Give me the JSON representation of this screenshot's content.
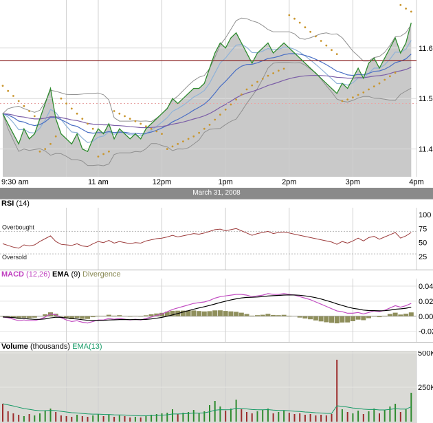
{
  "date_banner": "March 31, 2008",
  "x_axis": {
    "labels": [
      "9:30 am",
      "11 am",
      "12pm",
      "1pm",
      "2pm",
      "3pm",
      "4pm"
    ],
    "label_minutes": [
      0,
      90,
      150,
      210,
      270,
      330,
      390
    ],
    "grid_minutes": [
      60,
      90,
      150,
      210,
      270,
      330,
      390
    ],
    "total_minutes": 390,
    "step_minutes": 5
  },
  "chart_data": [
    {
      "type": "line",
      "name": "price-intraday",
      "date": "March 31, 2008",
      "ylim": [
        11.345,
        11.695
      ],
      "y_ticks": [
        {
          "label": "11.60",
          "value": 11.6
        },
        {
          "label": "11.50",
          "value": 11.5
        },
        {
          "label": "11.40",
          "value": 11.4
        }
      ],
      "series": [
        {
          "name": "price",
          "color": "#2e8b2e",
          "fill": "#c9c9c9",
          "values": [
            11.47,
            11.45,
            11.43,
            11.41,
            11.44,
            11.42,
            11.43,
            11.46,
            11.49,
            11.52,
            11.46,
            11.43,
            11.42,
            11.41,
            11.43,
            11.4,
            11.395,
            11.42,
            11.44,
            11.43,
            11.45,
            11.42,
            11.44,
            11.43,
            11.42,
            11.43,
            11.42,
            11.44,
            11.45,
            11.46,
            11.47,
            11.48,
            11.5,
            11.49,
            11.5,
            11.51,
            11.52,
            11.52,
            11.53,
            11.56,
            11.59,
            11.61,
            11.6,
            11.62,
            11.63,
            11.61,
            11.59,
            11.57,
            11.59,
            11.6,
            11.61,
            11.59,
            11.6,
            11.61,
            11.6,
            11.59,
            11.58,
            11.57,
            11.56,
            11.55,
            11.54,
            11.53,
            11.52,
            11.51,
            11.53,
            11.52,
            11.54,
            11.56,
            11.54,
            11.57,
            11.58,
            11.56,
            11.58,
            11.6,
            11.62,
            11.59,
            11.61,
            11.65
          ]
        },
        {
          "name": "parabolic-sar",
          "style": "dots",
          "color": "#c9962e",
          "points": [
            [
              0,
              11.525
            ],
            [
              1,
              11.515
            ],
            [
              2,
              11.505
            ],
            [
              3,
              11.495
            ],
            [
              4,
              11.485
            ],
            [
              5,
              11.475
            ],
            [
              6,
              11.465
            ],
            [
              7,
              11.395
            ],
            [
              8,
              11.4
            ],
            [
              9,
              11.41
            ],
            [
              10,
              11.425
            ],
            [
              11,
              11.5
            ],
            [
              12,
              11.49
            ],
            [
              13,
              11.48
            ],
            [
              14,
              11.47
            ],
            [
              15,
              11.46
            ],
            [
              16,
              11.45
            ],
            [
              17,
              11.44
            ],
            [
              18,
              11.385
            ],
            [
              19,
              11.39
            ],
            [
              20,
              11.395
            ],
            [
              21,
              11.475
            ],
            [
              22,
              11.47
            ],
            [
              23,
              11.465
            ],
            [
              24,
              11.46
            ],
            [
              25,
              11.455
            ],
            [
              26,
              11.45
            ],
            [
              27,
              11.445
            ],
            [
              28,
              11.44
            ],
            [
              29,
              11.435
            ],
            [
              30,
              11.43
            ],
            [
              31,
              11.4
            ],
            [
              32,
              11.405
            ],
            [
              33,
              11.41
            ],
            [
              34,
              11.415
            ],
            [
              35,
              11.42
            ],
            [
              36,
              11.425
            ],
            [
              37,
              11.432
            ],
            [
              38,
              11.44
            ],
            [
              39,
              11.448
            ],
            [
              40,
              11.458
            ],
            [
              41,
              11.468
            ],
            [
              42,
              11.478
            ],
            [
              43,
              11.488
            ],
            [
              44,
              11.498
            ],
            [
              45,
              11.508
            ],
            [
              46,
              11.518
            ],
            [
              47,
              11.526
            ],
            [
              48,
              11.533
            ],
            [
              49,
              11.539
            ],
            [
              50,
              11.545
            ],
            [
              51,
              11.55
            ],
            [
              52,
              11.555
            ],
            [
              53,
              11.559
            ],
            [
              54,
              11.665
            ],
            [
              55,
              11.658
            ],
            [
              56,
              11.65
            ],
            [
              57,
              11.641
            ],
            [
              58,
              11.632
            ],
            [
              59,
              11.623
            ],
            [
              60,
              11.614
            ],
            [
              61,
              11.605
            ],
            [
              62,
              11.596
            ],
            [
              63,
              11.588
            ],
            [
              64,
              11.495
            ],
            [
              65,
              11.498
            ],
            [
              66,
              11.502
            ],
            [
              67,
              11.507
            ],
            [
              68,
              11.512
            ],
            [
              69,
              11.518
            ],
            [
              70,
              11.524
            ],
            [
              71,
              11.53
            ],
            [
              72,
              11.537
            ],
            [
              73,
              11.544
            ],
            [
              74,
              11.551
            ],
            [
              75,
              11.685
            ],
            [
              76,
              11.678
            ],
            [
              77,
              11.672
            ]
          ]
        },
        {
          "name": "previous-close-line",
          "style": "hline",
          "color": "#8b2020",
          "value": 11.575
        },
        {
          "name": "support-line",
          "style": "hline-dotted",
          "color": "#e8a6a6",
          "value": 11.49
        }
      ],
      "computed_overlays": {
        "bollinger": {
          "window": 12,
          "mult": 2,
          "color": "#909090"
        },
        "ema_fast": {
          "period": 5,
          "color": "#8fb2d8"
        },
        "ema_mid": {
          "period": 14,
          "color": "#4a6fc4"
        },
        "ema_slow": {
          "period": 40,
          "color": "#7b5ea7"
        }
      }
    },
    {
      "type": "line",
      "name": "rsi",
      "title_parts": [
        {
          "text": "RSI",
          "bold": true,
          "color": "#000000"
        },
        {
          "text": " (14)",
          "bold": false,
          "color": "#000000"
        }
      ],
      "ylim": [
        2,
        112
      ],
      "y_ticks": [
        {
          "label": "100",
          "value": 100
        },
        {
          "label": "75",
          "value": 75
        },
        {
          "label": "50",
          "value": 50
        },
        {
          "label": "25",
          "value": 25
        }
      ],
      "guides": [
        70,
        30
      ],
      "annotations": [
        {
          "text": "Overbought",
          "value": 77
        },
        {
          "text": "Oversold",
          "value": 24
        }
      ],
      "color": "#9c3b3b",
      "values": [
        48,
        45,
        42,
        40,
        46,
        44,
        46,
        52,
        57,
        62,
        52,
        47,
        46,
        45,
        48,
        44,
        43,
        48,
        52,
        50,
        54,
        49,
        52,
        50,
        48,
        50,
        49,
        53,
        55,
        57,
        58,
        60,
        63,
        60,
        62,
        64,
        66,
        65,
        67,
        70,
        73,
        74,
        71,
        73,
        75,
        71,
        67,
        63,
        66,
        68,
        70,
        66,
        68,
        69,
        67,
        65,
        63,
        61,
        59,
        57,
        55,
        53,
        51,
        47,
        52,
        49,
        53,
        58,
        53,
        59,
        61,
        56,
        60,
        64,
        68,
        58,
        62,
        68
      ]
    },
    {
      "type": "line+histogram",
      "name": "macd",
      "title_parts": [
        {
          "text": "MACD",
          "bold": true,
          "color": "#bf3fbf"
        },
        {
          "text": " (12,26)",
          "bold": false,
          "color": "#bf3fbf"
        },
        {
          "text": " EMA",
          "bold": true,
          "color": "#000000"
        },
        {
          "text": " (9)",
          "bold": false,
          "color": "#000000"
        },
        {
          "text": " Divergence",
          "bold": false,
          "color": "#8a8a55"
        }
      ],
      "ylim": [
        -0.034,
        0.05
      ],
      "y_ticks": [
        {
          "label": "0.04",
          "value": 0.04
        },
        {
          "label": "0.02",
          "value": 0.02
        },
        {
          "label": "0.00",
          "value": 0
        },
        {
          "label": "-0.02",
          "value": -0.02
        }
      ],
      "macd_color": "#c24ec2",
      "signal_color": "#000000",
      "histogram_color": "#8f8f5c",
      "signal_ema_period": 9,
      "macd_values": [
        -0.001,
        -0.002,
        -0.004,
        -0.006,
        -0.005,
        -0.006,
        -0.006,
        -0.004,
        -0.001,
        0.003,
        0.002,
        -0.002,
        -0.005,
        -0.007,
        -0.006,
        -0.008,
        -0.009,
        -0.007,
        -0.005,
        -0.005,
        -0.003,
        -0.004,
        -0.003,
        -0.004,
        -0.005,
        -0.004,
        -0.005,
        -0.003,
        -0.001,
        0.001,
        0.003,
        0.006,
        0.009,
        0.011,
        0.013,
        0.015,
        0.017,
        0.018,
        0.019,
        0.021,
        0.024,
        0.026,
        0.027,
        0.028,
        0.029,
        0.029,
        0.028,
        0.026,
        0.027,
        0.028,
        0.03,
        0.029,
        0.029,
        0.03,
        0.029,
        0.028,
        0.026,
        0.024,
        0.022,
        0.019,
        0.016,
        0.013,
        0.01,
        0.007,
        0.006,
        0.004,
        0.004,
        0.005,
        0.003,
        0.005,
        0.007,
        0.006,
        0.008,
        0.011,
        0.014,
        0.012,
        0.014,
        0.017
      ]
    },
    {
      "type": "bar",
      "name": "volume",
      "title_parts": [
        {
          "text": "Volume",
          "bold": true,
          "color": "#000000"
        },
        {
          "text": " (thousands)",
          "bold": false,
          "color": "#000000"
        },
        {
          "text": " EMA(13)",
          "bold": false,
          "color": "#169a66"
        }
      ],
      "unit": "thousands",
      "y_ticks": [
        {
          "label": "500K",
          "value": 500
        },
        {
          "label": "250K",
          "value": 250
        }
      ],
      "up_color": "#2e8b2e",
      "down_color": "#9c2b2b",
      "ema_period": 13,
      "ema_color": "#169a66",
      "background": "#dadad6",
      "values_thousands": [
        130,
        75,
        60,
        50,
        40,
        55,
        45,
        60,
        80,
        95,
        70,
        45,
        40,
        35,
        50,
        40,
        35,
        45,
        55,
        40,
        50,
        35,
        45,
        40,
        30,
        35,
        30,
        45,
        50,
        55,
        60,
        65,
        90,
        55,
        65,
        70,
        85,
        60,
        75,
        120,
        150,
        110,
        80,
        95,
        160,
        90,
        70,
        60,
        75,
        85,
        95,
        60,
        70,
        80,
        65,
        55,
        60,
        50,
        55,
        45,
        50,
        45,
        55,
        450,
        90,
        70,
        60,
        80,
        55,
        75,
        95,
        60,
        85,
        110,
        130,
        70,
        90,
        210
      ]
    }
  ]
}
